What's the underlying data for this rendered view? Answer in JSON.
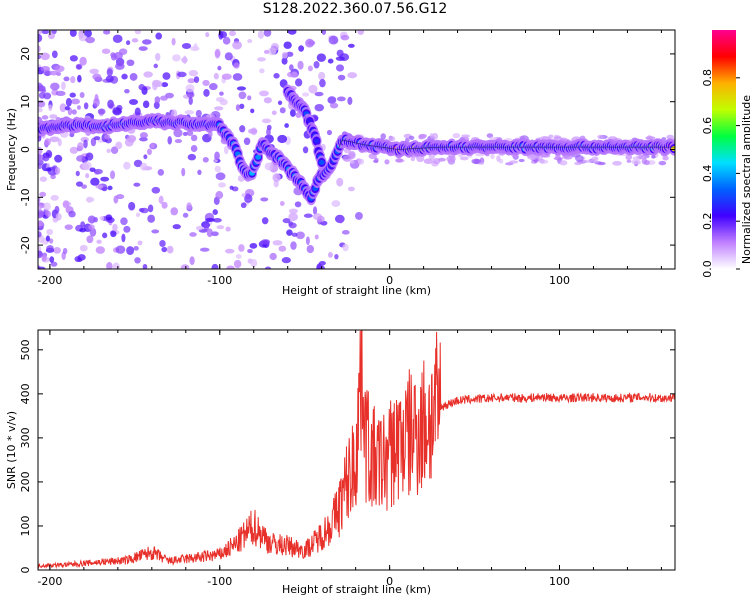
{
  "title": "S128.2022.360.07.56.G12",
  "chart_data": [
    {
      "type": "heatmap",
      "xlabel": "Height of straight line (km)",
      "ylabel": "Frequency (Hz)",
      "xlim": [
        -207,
        168
      ],
      "ylim": [
        -25,
        25
      ],
      "xticks": [
        -200,
        -100,
        0,
        100
      ],
      "yticks": [
        -20,
        -10,
        0,
        10,
        20
      ],
      "colorbar": {
        "label": "Normalized spectral amplitude",
        "range": [
          0,
          1
        ],
        "ticks": [
          "0.0",
          "0.2",
          "0.4",
          "0.6",
          "0.8"
        ],
        "tick_values": [
          0,
          0.2,
          0.4,
          0.6,
          0.8
        ],
        "colors": [
          "#ffffff",
          "#c080ff",
          "#4000ff",
          "#0060ff",
          "#00e0ff",
          "#00ff40",
          "#c0ff00",
          "#ffb000",
          "#ff0000",
          "#ff0090"
        ]
      },
      "ridge": [
        {
          "x": -205,
          "y": 4.5,
          "amp": 0.35
        },
        {
          "x": -185,
          "y": 5.0,
          "amp": 0.45
        },
        {
          "x": -165,
          "y": 5.0,
          "amp": 0.45
        },
        {
          "x": -140,
          "y": 6.0,
          "amp": 0.45
        },
        {
          "x": -120,
          "y": 5.5,
          "amp": 0.45
        },
        {
          "x": -100,
          "y": 5.0,
          "amp": 0.4
        },
        {
          "x": -92,
          "y": 1.0,
          "amp": 0.35
        },
        {
          "x": -86,
          "y": -4.0,
          "amp": 0.4
        },
        {
          "x": -82,
          "y": -5.5,
          "amp": 0.4
        },
        {
          "x": -75,
          "y": 1.0,
          "amp": 0.35
        },
        {
          "x": -65,
          "y": -2.0,
          "amp": 0.4
        },
        {
          "x": -55,
          "y": -6.0,
          "amp": 0.35
        },
        {
          "x": -46,
          "y": -10.0,
          "amp": 0.35
        },
        {
          "x": -42,
          "y": -6.0,
          "amp": 0.35
        },
        {
          "x": -35,
          "y": -4.0,
          "amp": 0.35
        },
        {
          "x": -28,
          "y": 2.0,
          "amp": 0.35
        },
        {
          "x": -15,
          "y": 1.0,
          "amp": 0.4
        },
        {
          "x": -5,
          "y": 0.5,
          "amp": 0.45
        },
        {
          "x": 5,
          "y": 0.0,
          "amp": 0.9
        },
        {
          "x": 30,
          "y": 0.5,
          "amp": 0.45
        },
        {
          "x": 60,
          "y": 0.5,
          "amp": 0.45
        },
        {
          "x": 90,
          "y": 0.5,
          "amp": 0.5
        },
        {
          "x": 120,
          "y": 0.5,
          "amp": 0.45
        },
        {
          "x": 150,
          "y": 0.5,
          "amp": 0.5
        },
        {
          "x": 168,
          "y": 0.5,
          "amp": 0.95
        }
      ],
      "secondary_ridge": [
        {
          "x": -60,
          "y": 12,
          "amp": 0.3
        },
        {
          "x": -50,
          "y": 8,
          "amp": 0.35
        },
        {
          "x": -44,
          "y": 3,
          "amp": 0.3
        },
        {
          "x": -40,
          "y": -3,
          "amp": 0.3
        }
      ]
    },
    {
      "type": "line",
      "xlabel": "Height of straight line (km)",
      "ylabel": "SNR (10 * v/v)",
      "xlim": [
        -207,
        168
      ],
      "ylim": [
        0,
        545
      ],
      "xticks": [
        -200,
        -100,
        0,
        100
      ],
      "yticks": [
        0,
        100,
        200,
        300,
        400,
        500
      ],
      "color": "#e8302a",
      "x": [
        -207,
        -190,
        -170,
        -155,
        -140,
        -130,
        -120,
        -110,
        -100,
        -90,
        -80,
        -75,
        -70,
        -60,
        -50,
        -45,
        -40,
        -35,
        -30,
        -25,
        -20,
        -18,
        -16,
        -14,
        -10,
        -5,
        0,
        5,
        10,
        15,
        20,
        25,
        30,
        40,
        50,
        60,
        70,
        80,
        90,
        100,
        110,
        120,
        130,
        140,
        150,
        160,
        168
      ],
      "y": [
        10,
        12,
        18,
        22,
        40,
        20,
        25,
        30,
        35,
        60,
        100,
        80,
        60,
        55,
        45,
        60,
        80,
        100,
        140,
        200,
        250,
        380,
        520,
        300,
        250,
        240,
        260,
        290,
        300,
        320,
        330,
        350,
        370,
        385,
        388,
        390,
        392,
        390,
        393,
        390,
        391,
        392,
        390,
        391,
        393,
        390,
        392
      ]
    }
  ]
}
